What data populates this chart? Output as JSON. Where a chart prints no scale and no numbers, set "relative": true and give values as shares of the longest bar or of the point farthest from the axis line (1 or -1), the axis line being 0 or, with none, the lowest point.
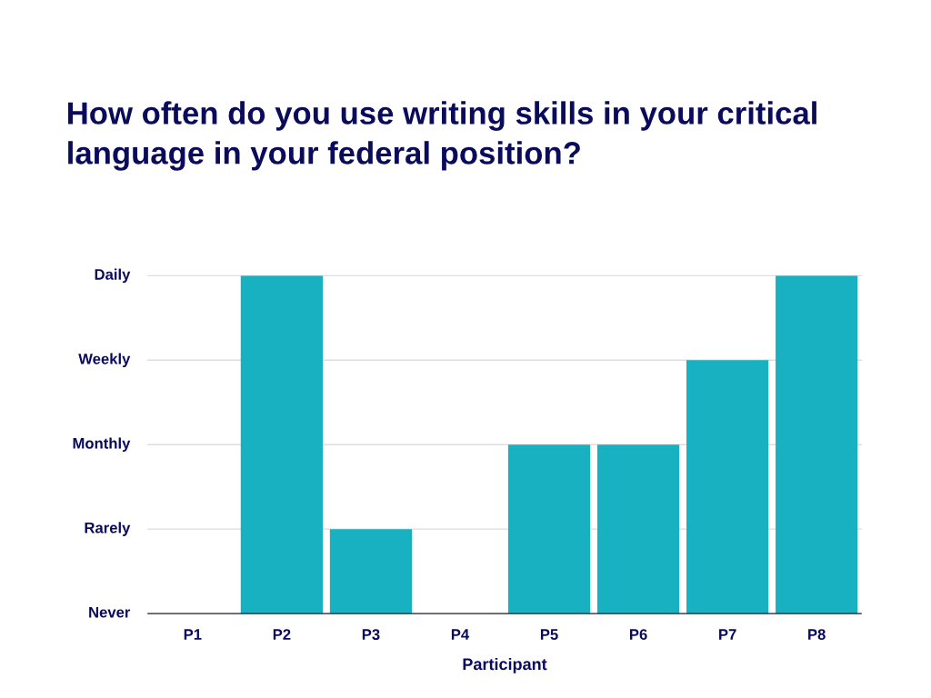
{
  "chart_data": {
    "type": "bar",
    "title": "How often do you use writing skills in your critical\nlanguage in your federal position?",
    "xlabel": "Participant",
    "categories": [
      "P1",
      "P2",
      "P3",
      "P4",
      "P5",
      "P6",
      "P7",
      "P8"
    ],
    "values": [
      0,
      1,
      0.25,
      0,
      0.5,
      0.5,
      0.75,
      1
    ],
    "color": "#17b1c1",
    "relative": true,
    "ref_lines": [
      {
        "axis": "y",
        "value": 0,
        "label": "Never",
        "color": "#dddddd"
      },
      {
        "axis": "y",
        "value": 0.25,
        "label": "Rarely",
        "color": "#dddddd"
      },
      {
        "axis": "y",
        "value": 0.5,
        "label": "Monthly",
        "color": "#dddddd"
      },
      {
        "axis": "y",
        "value": 0.75,
        "label": "Weekly",
        "color": "#dddddd"
      },
      {
        "axis": "y",
        "value": 1,
        "label": "Daily",
        "color": "#dddddd"
      }
    ]
  }
}
